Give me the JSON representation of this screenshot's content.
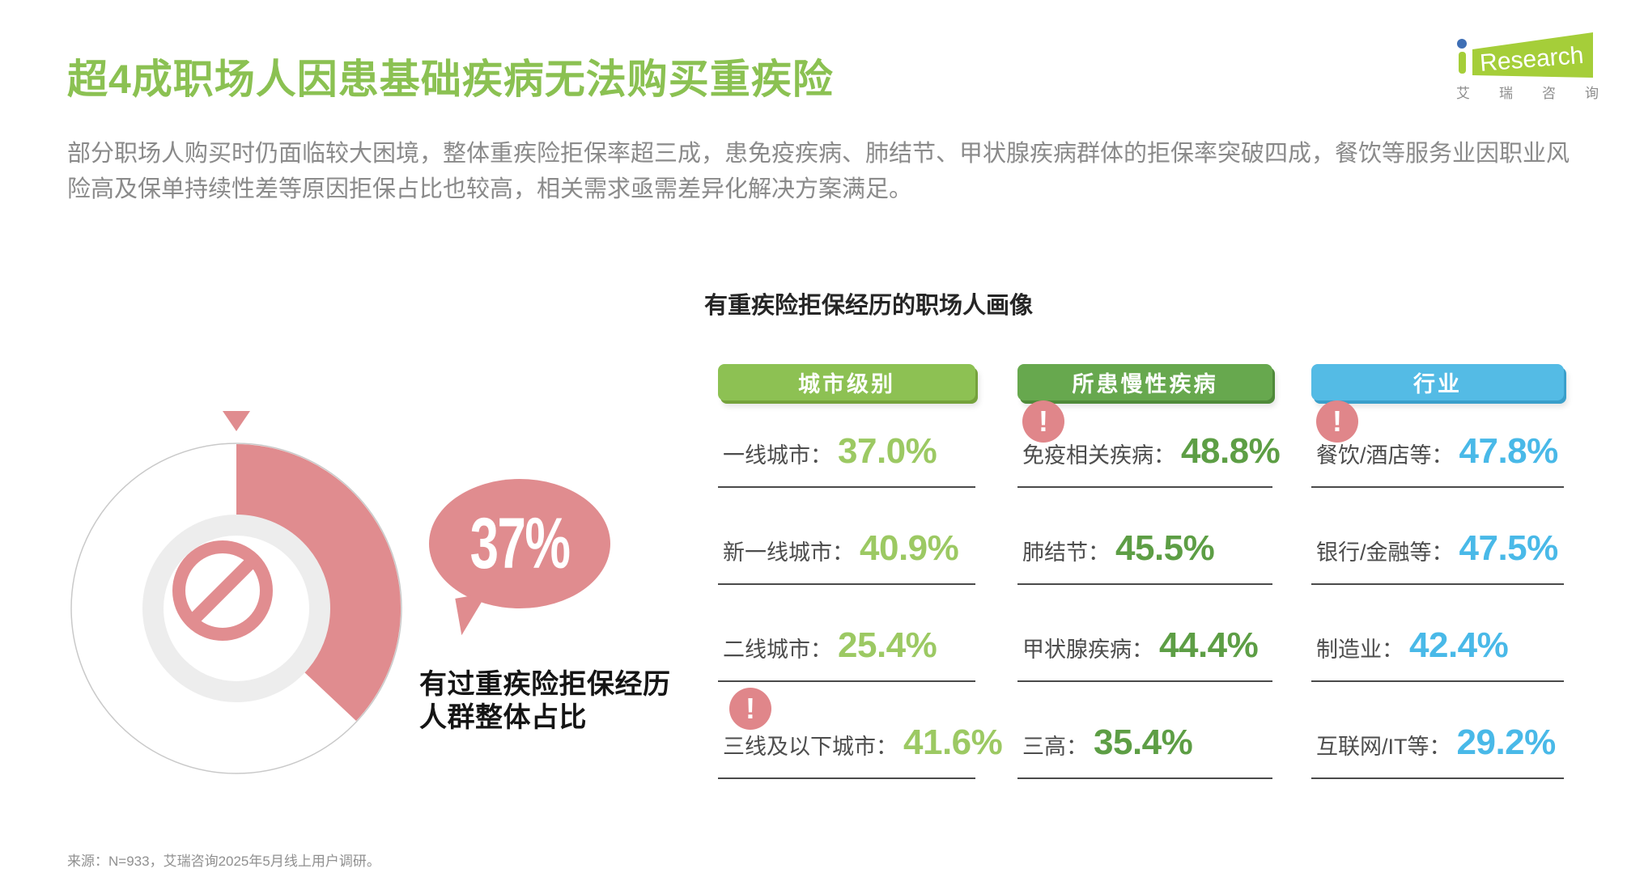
{
  "page": {
    "title": "超4成职场人因患基础疾病无法购买重疾险",
    "description": "部分职场人购买时仍面临较大困境，整体重疾险拒保率超三成，患免疫疾病、肺结节、甲状腺疾病群体的拒保率突破四成，餐饮等服务业因职业风险高及保单持续性差等原因拒保占比也较高，相关需求亟需差异化解决方案满足。",
    "source_note": "来源：N=933，艾瑞咨询2025年5月线上用户调研。"
  },
  "logo": {
    "i": "i",
    "research": "Research",
    "cn": "艾瑞咨询",
    "green": "#a5ce39",
    "blue": "#3f6fb5"
  },
  "chart_data": {
    "type": "donut+table",
    "title": "有重疾险拒保经历的职场人画像",
    "alert_icon": "!",
    "donut": {
      "value": 37,
      "value_label": "37%",
      "caption_line1": "有过重疾险拒保经历",
      "caption_line2": "人群整体占比",
      "color": "#e08c8f",
      "start_angle_deg": 0,
      "direction": "clockwise"
    },
    "columns": [
      {
        "header": "城市级别",
        "header_color": "#8dc153",
        "value_color": "#9cc963",
        "rows": [
          {
            "label": "一线城市：",
            "value": "37.0%",
            "alert": false
          },
          {
            "label": "新一线城市：",
            "value": "40.9%",
            "alert": false
          },
          {
            "label": "二线城市：",
            "value": "25.4%",
            "alert": false
          },
          {
            "label": "三线及以下城市：",
            "value": "41.6%",
            "alert": true
          }
        ]
      },
      {
        "header": "所患慢性疾病",
        "header_color": "#67a84e",
        "value_color": "#5d9e45",
        "rows": [
          {
            "label": "免疫相关疾病：",
            "value": "48.8%",
            "alert": true
          },
          {
            "label": "肺结节：",
            "value": "45.5%",
            "alert": false
          },
          {
            "label": "甲状腺疾病：",
            "value": "44.4%",
            "alert": false
          },
          {
            "label": "三高：",
            "value": "35.4%",
            "alert": false
          }
        ]
      },
      {
        "header": "行业",
        "header_color": "#54bbe5",
        "value_color": "#49b9e8",
        "rows": [
          {
            "label": "餐饮/酒店等：",
            "value": "47.8%",
            "alert": true
          },
          {
            "label": "银行/金融等：",
            "value": "47.5%",
            "alert": false
          },
          {
            "label": "制造业：",
            "value": "42.4%",
            "alert": false
          },
          {
            "label": "互联网/IT等：",
            "value": "29.2%",
            "alert": false
          }
        ]
      }
    ]
  }
}
